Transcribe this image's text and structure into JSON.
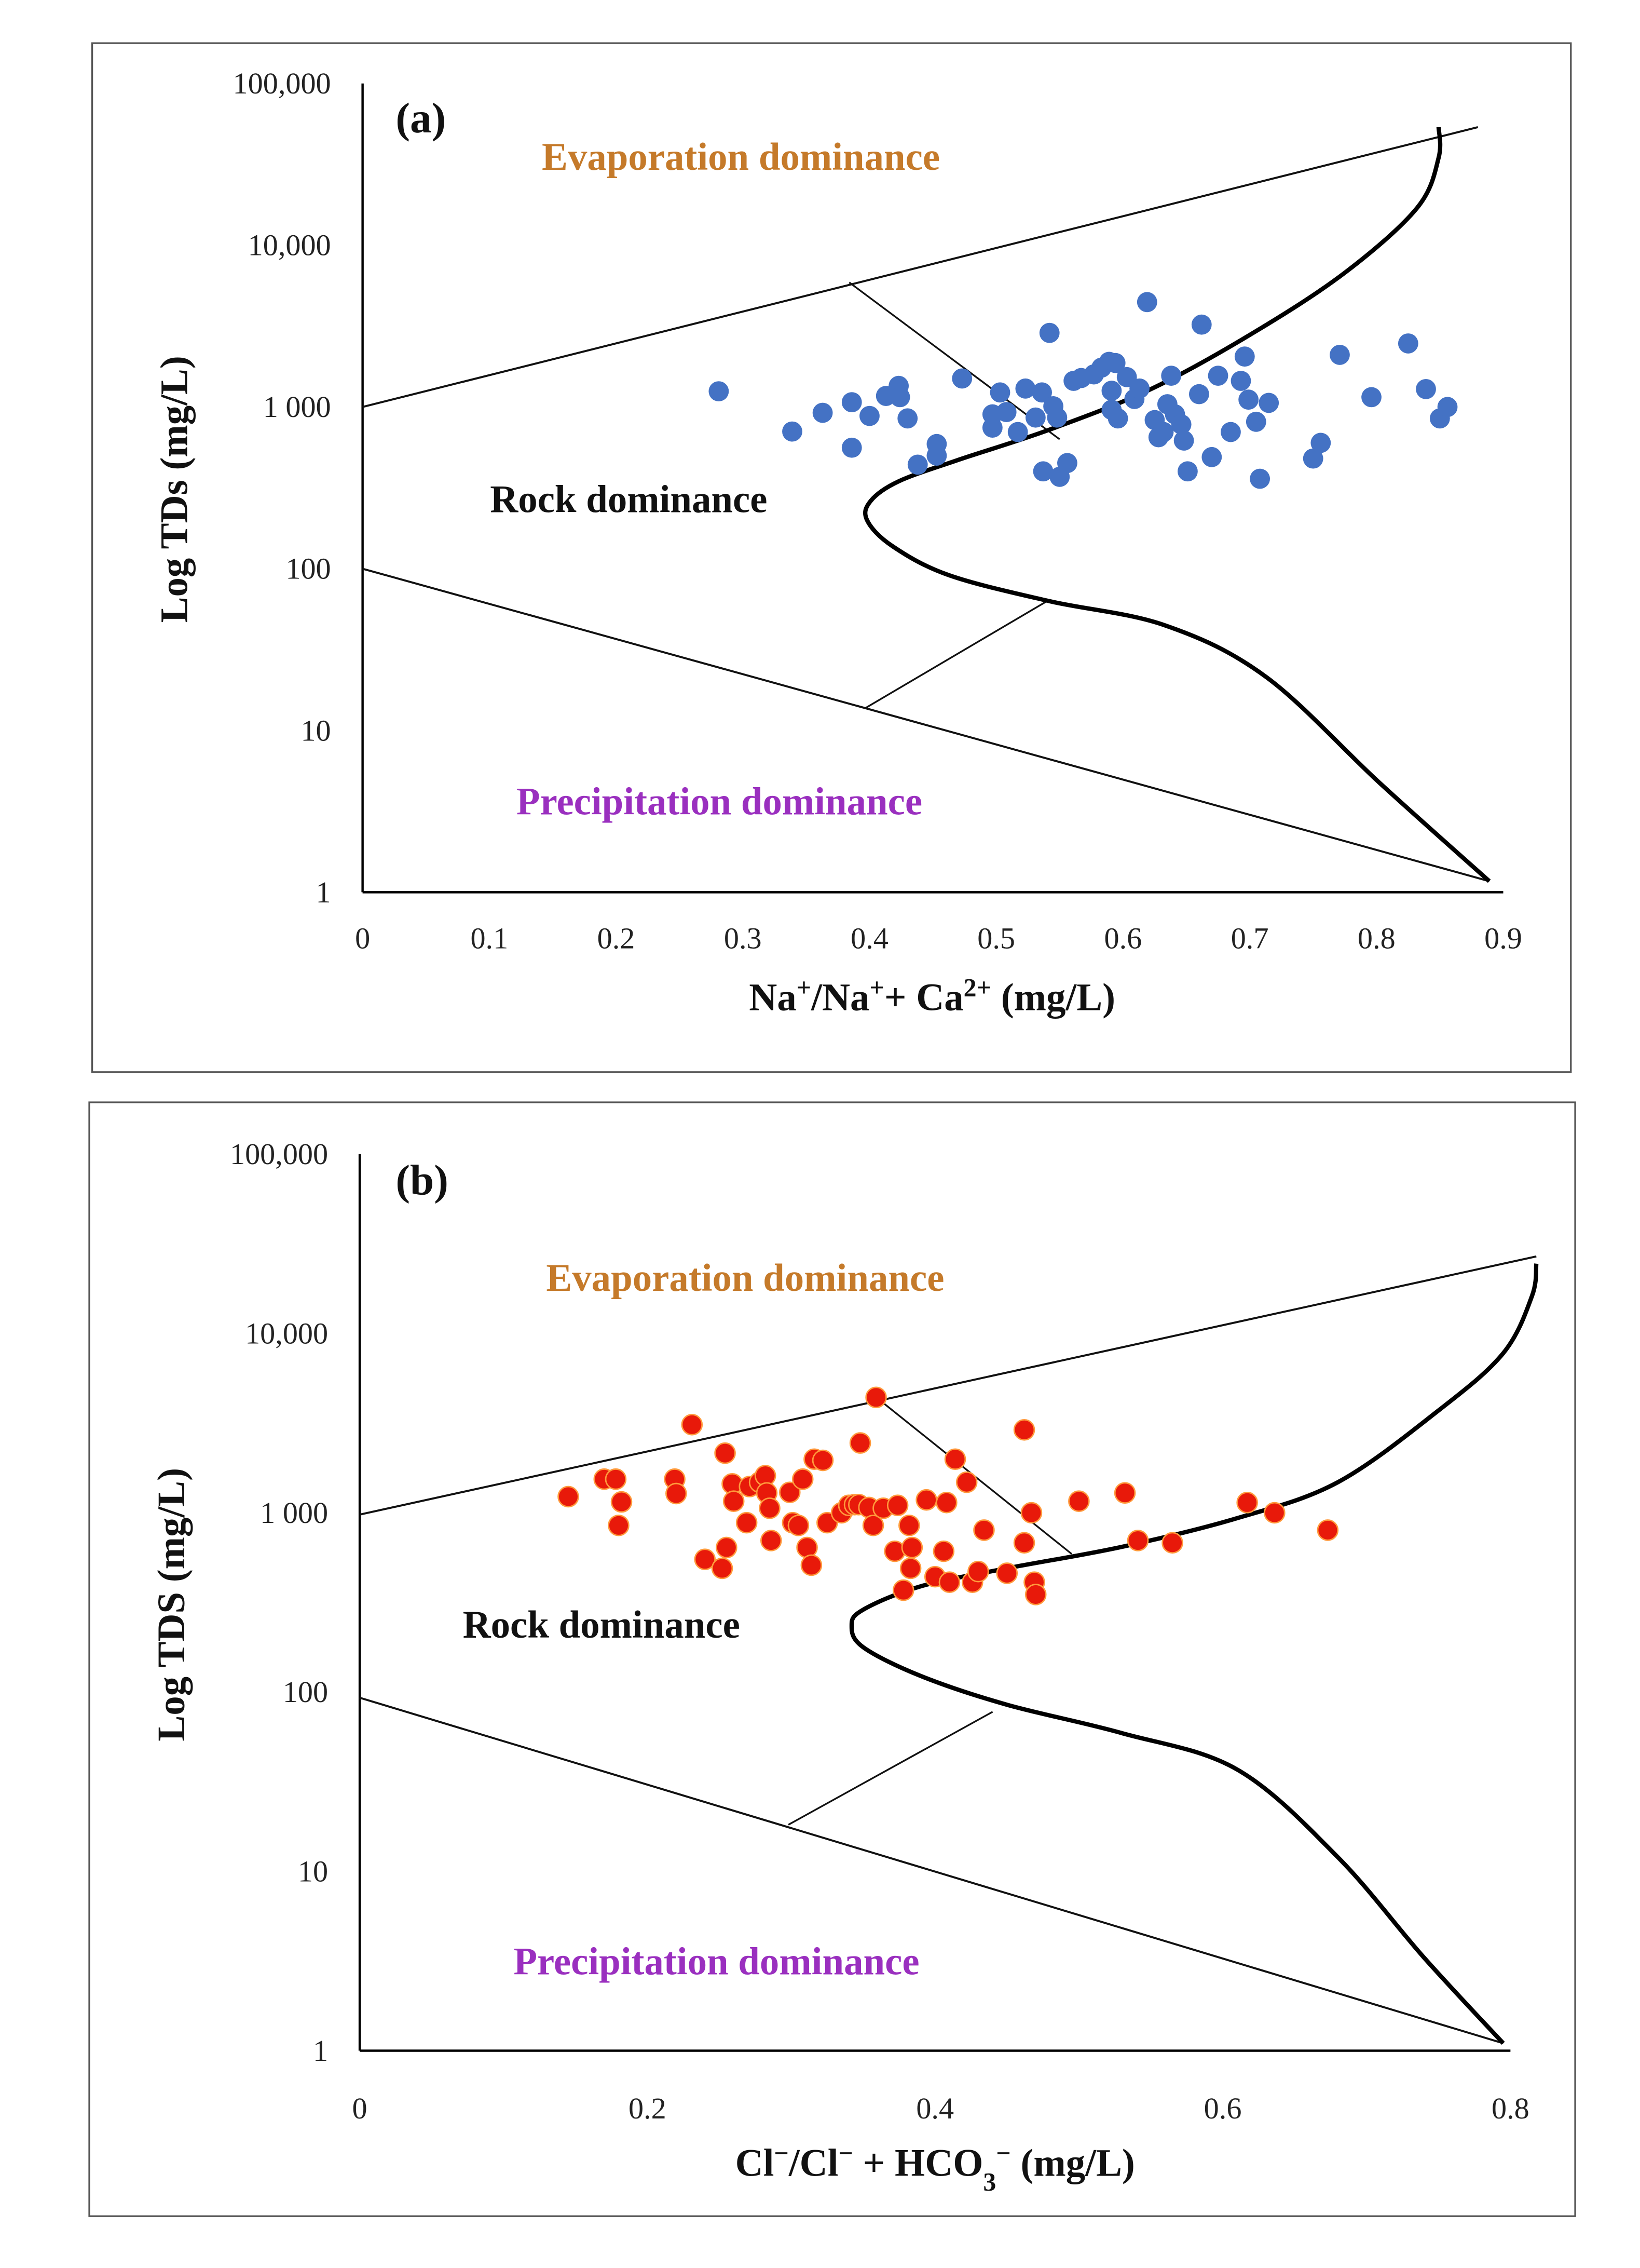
{
  "chart_data": [
    {
      "type": "scatter",
      "panel_label": "(a)",
      "ylabel": "Log TDs (mg/L)",
      "xlabel_parts": [
        {
          "t": "Na",
          "sup": false
        },
        {
          "t": "+",
          "sup": true
        },
        {
          "t": "/Na",
          "sup": false
        },
        {
          "t": "+",
          "sup": true
        },
        {
          "t": "+ Ca",
          "sup": false
        },
        {
          "t": "2+",
          "sup": true
        },
        {
          "t": " (mg/L)",
          "sup": false
        }
      ],
      "xlim": [
        0,
        0.9
      ],
      "ylim": [
        1,
        100000
      ],
      "yscale": "log",
      "x_ticks": [
        "0",
        "0.1",
        "0.2",
        "0.3",
        "0.4",
        "0.5",
        "0.6",
        "0.7",
        "0.8",
        "0.9"
      ],
      "y_ticks": [
        "1",
        "10",
        "100",
        "1 000",
        "10,000",
        "100,000"
      ],
      "regions": {
        "evaporation": "Evaporation dominance",
        "rock": "Rock dominance",
        "precipitation": "Precipitation dominance"
      },
      "point_color": "#4472c4",
      "boundary_upper": [
        [
          0,
          1000
        ],
        [
          0.88,
          53700
        ]
      ],
      "boundary_lower": [
        [
          0,
          100
        ],
        [
          0.889,
          1.17
        ]
      ],
      "tie_upper": [
        [
          0.384,
          5890
        ],
        [
          0.55,
          631
        ]
      ],
      "tie_lower": [
        [
          0.397,
          13.8
        ],
        [
          0.54,
          63
        ]
      ],
      "curve": [
        [
          0.889,
          1.17
        ],
        [
          0.803,
          4.7
        ],
        [
          0.713,
          21.4
        ],
        [
          0.633,
          44.7
        ],
        [
          0.542,
          63
        ],
        [
          0.463,
          91
        ],
        [
          0.418,
          138
        ],
        [
          0.398,
          200
        ],
        [
          0.401,
          263
        ],
        [
          0.423,
          347
        ],
        [
          0.469,
          468
        ],
        [
          0.542,
          724
        ],
        [
          0.622,
          1290
        ],
        [
          0.701,
          2820
        ],
        [
          0.775,
          6760
        ],
        [
          0.832,
          17000
        ],
        [
          0.849,
          34700
        ],
        [
          0.849,
          53700
        ]
      ],
      "points": [
        [
          0.281,
          1250
        ],
        [
          0.339,
          705
        ],
        [
          0.363,
          920
        ],
        [
          0.386,
          1070
        ],
        [
          0.386,
          560
        ],
        [
          0.4,
          880
        ],
        [
          0.413,
          1170
        ],
        [
          0.423,
          1350
        ],
        [
          0.424,
          1150
        ],
        [
          0.43,
          850
        ],
        [
          0.438,
          440
        ],
        [
          0.453,
          590
        ],
        [
          0.453,
          500
        ],
        [
          0.473,
          1500
        ],
        [
          0.497,
          745
        ],
        [
          0.497,
          900
        ],
        [
          0.503,
          1230
        ],
        [
          0.508,
          930
        ],
        [
          0.517,
          700
        ],
        [
          0.523,
          1300
        ],
        [
          0.531,
          860
        ],
        [
          0.536,
          1230
        ],
        [
          0.537,
          400
        ],
        [
          0.542,
          2870
        ],
        [
          0.545,
          1010
        ],
        [
          0.548,
          860
        ],
        [
          0.55,
          370
        ],
        [
          0.556,
          450
        ],
        [
          0.561,
          1450
        ],
        [
          0.567,
          1510
        ],
        [
          0.577,
          1590
        ],
        [
          0.583,
          1750
        ],
        [
          0.589,
          1900
        ],
        [
          0.594,
          1870
        ],
        [
          0.591,
          1260
        ],
        [
          0.591,
          960
        ],
        [
          0.596,
          850
        ],
        [
          0.603,
          1530
        ],
        [
          0.609,
          1120
        ],
        [
          0.613,
          1300
        ],
        [
          0.619,
          4450
        ],
        [
          0.625,
          830
        ],
        [
          0.628,
          650
        ],
        [
          0.632,
          700
        ],
        [
          0.635,
          1040
        ],
        [
          0.638,
          1560
        ],
        [
          0.641,
          900
        ],
        [
          0.646,
          780
        ],
        [
          0.648,
          620
        ],
        [
          0.651,
          400
        ],
        [
          0.66,
          1200
        ],
        [
          0.662,
          3230
        ],
        [
          0.67,
          490
        ],
        [
          0.675,
          1560
        ],
        [
          0.685,
          700
        ],
        [
          0.693,
          1450
        ],
        [
          0.696,
          2050
        ],
        [
          0.699,
          1110
        ],
        [
          0.705,
          810
        ],
        [
          0.708,
          360
        ],
        [
          0.715,
          1060
        ],
        [
          0.75,
          480
        ],
        [
          0.756,
          600
        ],
        [
          0.771,
          2100
        ],
        [
          0.796,
          1150
        ],
        [
          0.825,
          2470
        ],
        [
          0.839,
          1290
        ],
        [
          0.85,
          850
        ],
        [
          0.856,
          1000
        ]
      ]
    },
    {
      "type": "scatter",
      "panel_label": "(b)",
      "ylabel": "Log TDS (mg/L)",
      "xlabel_parts": [
        {
          "t": "Cl",
          "sup": false
        },
        {
          "t": "−",
          "sup": true
        },
        {
          "t": "/Cl",
          "sup": false
        },
        {
          "t": "−",
          "sup": true
        },
        {
          "t": " + HCO",
          "sup": false
        },
        {
          "t": "3",
          "sub": true
        },
        {
          "t": "−",
          "sup": true
        },
        {
          "t": " (mg/L)",
          "sup": false
        }
      ],
      "xlim": [
        0,
        0.8
      ],
      "ylim": [
        1,
        100000
      ],
      "yscale": "log",
      "x_ticks": [
        "0",
        "0.2",
        "0.4",
        "0.6",
        "0.8"
      ],
      "y_ticks": [
        "1",
        "10",
        "100",
        "1 000",
        "10,000",
        "100,000"
      ],
      "regions": {
        "evaporation": "Evaporation dominance",
        "rock": "Rock dominance",
        "precipitation": "Precipitation dominance"
      },
      "point_color": "#e8190a",
      "boundary_upper": [
        [
          0,
          977
        ],
        [
          0.818,
          26900
        ]
      ],
      "boundary_lower": [
        [
          0,
          93
        ],
        [
          0.795,
          1.1
        ]
      ],
      "tie_upper": [
        [
          0.355,
          4680
        ],
        [
          0.495,
          589
        ]
      ],
      "tie_lower": [
        [
          0.298,
          18.2
        ],
        [
          0.44,
          77.6
        ]
      ],
      "curve": [
        [
          0.795,
          1.1
        ],
        [
          0.74,
          3.3
        ],
        [
          0.68,
          12
        ],
        [
          0.61,
          37
        ],
        [
          0.53,
          59
        ],
        [
          0.45,
          85
        ],
        [
          0.39,
          123
        ],
        [
          0.35,
          178
        ],
        [
          0.342,
          234
        ],
        [
          0.35,
          288
        ],
        [
          0.39,
          389
        ],
        [
          0.45,
          490
        ],
        [
          0.53,
          646
        ],
        [
          0.61,
          933
        ],
        [
          0.68,
          1480
        ],
        [
          0.75,
          3720
        ],
        [
          0.795,
          7760
        ],
        [
          0.815,
          16200
        ],
        [
          0.818,
          24500
        ]
      ],
      "points": [
        [
          0.145,
          1230
        ],
        [
          0.17,
          1540
        ],
        [
          0.178,
          1540
        ],
        [
          0.182,
          1150
        ],
        [
          0.18,
          850
        ],
        [
          0.219,
          1540
        ],
        [
          0.22,
          1280
        ],
        [
          0.231,
          3100
        ],
        [
          0.24,
          550
        ],
        [
          0.252,
          490
        ],
        [
          0.254,
          2150
        ],
        [
          0.255,
          640
        ],
        [
          0.259,
          1450
        ],
        [
          0.26,
          1160
        ],
        [
          0.269,
          880
        ],
        [
          0.271,
          1400
        ],
        [
          0.278,
          1480
        ],
        [
          0.282,
          1610
        ],
        [
          0.283,
          1290
        ],
        [
          0.285,
          1060
        ],
        [
          0.286,
          700
        ],
        [
          0.299,
          1300
        ],
        [
          0.301,
          880
        ],
        [
          0.305,
          850
        ],
        [
          0.308,
          1540
        ],
        [
          0.311,
          640
        ],
        [
          0.314,
          510
        ],
        [
          0.316,
          1990
        ],
        [
          0.322,
          1960
        ],
        [
          0.325,
          880
        ],
        [
          0.335,
          1000
        ],
        [
          0.34,
          1100
        ],
        [
          0.344,
          1110
        ],
        [
          0.347,
          1110
        ],
        [
          0.348,
          2450
        ],
        [
          0.354,
          1070
        ],
        [
          0.357,
          850
        ],
        [
          0.359,
          4400
        ],
        [
          0.364,
          1060
        ],
        [
          0.372,
          610
        ],
        [
          0.374,
          1100
        ],
        [
          0.378,
          370
        ],
        [
          0.382,
          850
        ],
        [
          0.383,
          490
        ],
        [
          0.384,
          640
        ],
        [
          0.394,
          1180
        ],
        [
          0.4,
          440
        ],
        [
          0.406,
          610
        ],
        [
          0.408,
          1140
        ],
        [
          0.41,
          410
        ],
        [
          0.414,
          1990
        ],
        [
          0.422,
          1480
        ],
        [
          0.426,
          410
        ],
        [
          0.43,
          470
        ],
        [
          0.434,
          800
        ],
        [
          0.45,
          460
        ],
        [
          0.462,
          2900
        ],
        [
          0.462,
          680
        ],
        [
          0.467,
          1000
        ],
        [
          0.469,
          410
        ],
        [
          0.47,
          350
        ],
        [
          0.5,
          1160
        ],
        [
          0.532,
          1290
        ],
        [
          0.541,
          700
        ],
        [
          0.565,
          680
        ],
        [
          0.617,
          1140
        ],
        [
          0.636,
          1000
        ],
        [
          0.673,
          800
        ]
      ]
    }
  ]
}
